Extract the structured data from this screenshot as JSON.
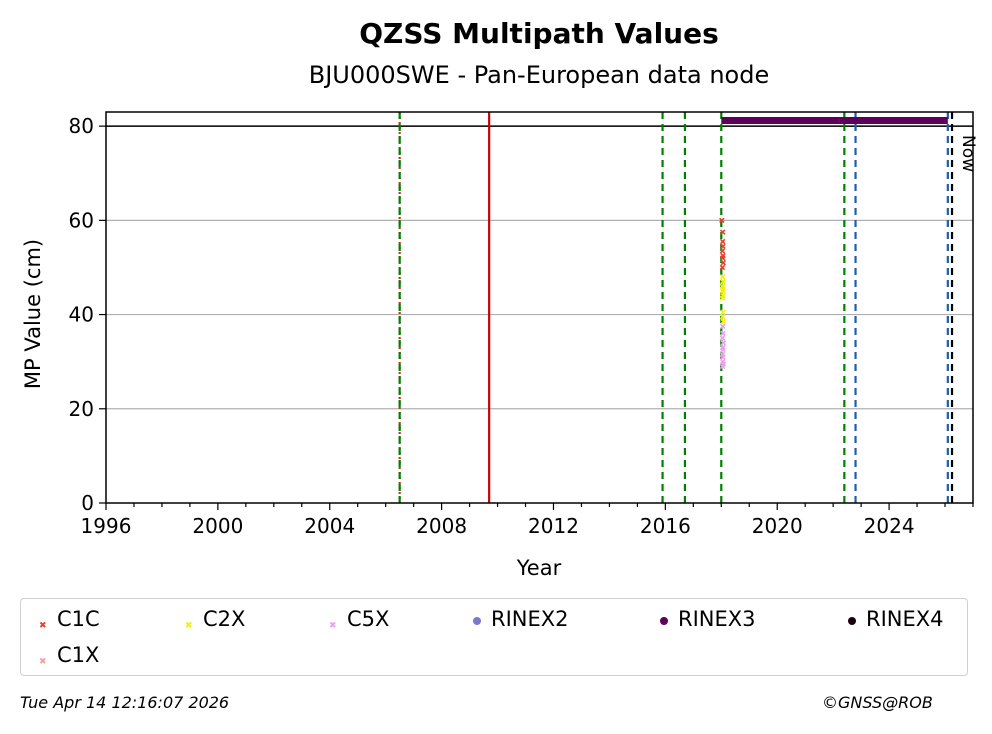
{
  "chart_data": {
    "type": "scatter",
    "title": "QZSS Multipath Values",
    "subtitle": "BJU000SWE - Pan-European data node",
    "xlabel": "Year",
    "ylabel": "MP Value (cm)",
    "xlim": [
      1996.0,
      2027.0
    ],
    "ylim": [
      0,
      83
    ],
    "x_ticks": [
      1996,
      2000,
      2004,
      2008,
      2012,
      2016,
      2020,
      2024
    ],
    "y_ticks": [
      0,
      20,
      40,
      60,
      80
    ],
    "grid": "horizontal",
    "threshold_line": 80,
    "now_label": "Now",
    "vertical_lines": [
      {
        "x": 2006.5,
        "color": "#d62728",
        "style": "dotted"
      },
      {
        "x": 2006.5,
        "color": "#008000",
        "style": "dashed"
      },
      {
        "x": 2009.7,
        "color": "#cc0000",
        "style": "solid"
      },
      {
        "x": 2015.9,
        "color": "#008000",
        "style": "dashed"
      },
      {
        "x": 2016.7,
        "color": "#008000",
        "style": "dashed"
      },
      {
        "x": 2018.0,
        "color": "#008000",
        "style": "dashed"
      },
      {
        "x": 2022.4,
        "color": "#008000",
        "style": "dashed"
      },
      {
        "x": 2022.8,
        "color": "#1f5fa8",
        "style": "dashed"
      },
      {
        "x": 2026.1,
        "color": "#1f5fa8",
        "style": "dashed"
      },
      {
        "x": 2026.25,
        "color": "#000000",
        "style": "dashed"
      }
    ],
    "rinex_bar": {
      "name": "RINEX3",
      "x_start": 2018.0,
      "x_end": 2026.1,
      "y": 81.2,
      "color": "#5c005c"
    },
    "series": [
      {
        "name": "C1C",
        "color": "#e8402a",
        "marker": "x",
        "x": [
          2018.02,
          2018.05,
          2018.06,
          2018.04,
          2018.06,
          2018.05,
          2018.07,
          2018.04,
          2018.05
        ],
        "y": [
          60,
          57.5,
          54.5,
          53.5,
          52.5,
          52.0,
          51.0,
          50.0,
          55.5
        ]
      },
      {
        "name": "C2X",
        "color": "#f7f000",
        "marker": "x",
        "x": [
          2018.05,
          2018.06,
          2018.04,
          2018.07,
          2018.05,
          2018.06,
          2018.04,
          2018.06,
          2018.05,
          2018.07
        ],
        "y": [
          48.0,
          47.0,
          46.0,
          45.5,
          45.0,
          44.0,
          43.5,
          40.5,
          39.5,
          38.5
        ]
      },
      {
        "name": "C5X",
        "color": "#f09cf0",
        "marker": "x",
        "x": [
          2018.05,
          2018.06,
          2018.04,
          2018.07,
          2018.05,
          2018.06,
          2018.04,
          2018.06,
          2018.05,
          2018.07,
          2018.05
        ],
        "y": [
          37.5,
          36.0,
          35.0,
          34.0,
          33.0,
          32.5,
          31.5,
          31.0,
          30.0,
          29.5,
          29.0
        ]
      },
      {
        "name": "RINEX2",
        "color": "#7f78c8",
        "marker": "dot",
        "x": [],
        "y": []
      },
      {
        "name": "RINEX3",
        "color": "#5c005c",
        "marker": "dot",
        "x": [],
        "y": []
      },
      {
        "name": "RINEX4",
        "color": "#1a0010",
        "marker": "dot",
        "x": [],
        "y": []
      },
      {
        "name": "C1X",
        "color": "#f5a0a0",
        "marker": "x",
        "x": [],
        "y": []
      }
    ]
  },
  "legend": [
    {
      "label": "C1C",
      "color": "#e8402a",
      "marker": "x"
    },
    {
      "label": "C2X",
      "color": "#f7f000",
      "marker": "x"
    },
    {
      "label": "C5X",
      "color": "#f09cf0",
      "marker": "x"
    },
    {
      "label": "RINEX2",
      "color": "#7f78c8",
      "marker": "dot"
    },
    {
      "label": "RINEX3",
      "color": "#5c005c",
      "marker": "dot"
    },
    {
      "label": "RINEX4",
      "color": "#1a0010",
      "marker": "dot"
    },
    {
      "label": "C1X",
      "color": "#f5a0a0",
      "marker": "x"
    }
  ],
  "footer": {
    "timestamp": "Tue Apr 14 12:16:07 2026",
    "copyright": "©GNSS@ROB"
  }
}
